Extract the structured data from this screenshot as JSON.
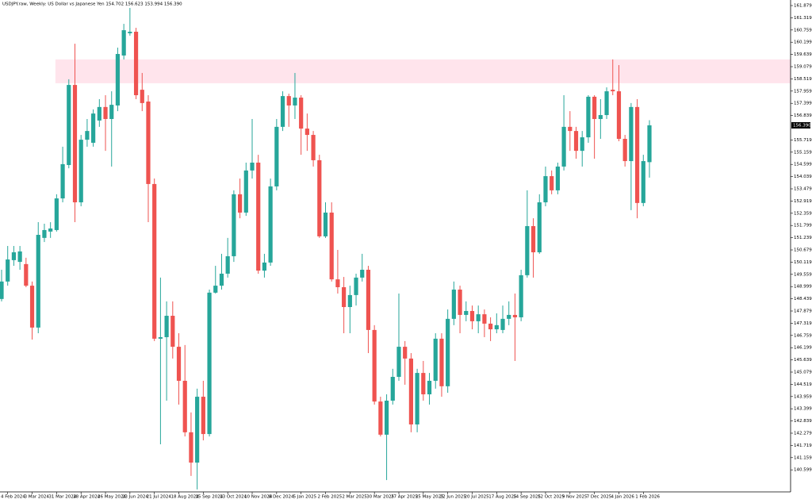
{
  "chart_data": {
    "type": "candlestick",
    "title": "USDJPY.raw, Weekly: US Dollar vs Japanese Yen 154.702 156.623 153.994 156.390",
    "categories": [
      null,
      "4 Feb 2024",
      null,
      null,
      null,
      "3 Mar 2024",
      null,
      null,
      null,
      "31 Mar 2024",
      null,
      null,
      null,
      "28 Apr 2024",
      null,
      null,
      null,
      "26 May 2024",
      null,
      null,
      null,
      "23 Jun 2024",
      null,
      null,
      null,
      "21 Jul 2024",
      null,
      null,
      null,
      "18 Aug 2024",
      null,
      null,
      null,
      "15 Sep 2024",
      null,
      null,
      null,
      "13 Oct 2024",
      null,
      null,
      null,
      "10 Nov 2024",
      null,
      null,
      null,
      "8 Dec 2024",
      null,
      null,
      null,
      "5 Jan 2025",
      null,
      null,
      null,
      "2 Feb 2025",
      null,
      null,
      null,
      "2 Mar 2025",
      null,
      null,
      null,
      "30 Mar 2025",
      null,
      null,
      null,
      "27 Apr 2025",
      null,
      null,
      null,
      "25 May 2025",
      null,
      null,
      null,
      "22 Jun 2025",
      null,
      null,
      null,
      "20 Jul 2025",
      null,
      null,
      null,
      "17 Aug 2025",
      null,
      null,
      null,
      "14 Sep 2025",
      null,
      null,
      null,
      "12 Oct 2025",
      null,
      null,
      null,
      "9 Nov 2025",
      null,
      null,
      null,
      "7 Dec 2025",
      null,
      null,
      null,
      "4 Jan 2026",
      null,
      null,
      null,
      "1 Feb 2026",
      null
    ],
    "open": [
      148.43,
      149.23,
      150.21,
      150.13,
      150.03,
      149.04,
      147.12,
      151.23,
      151.52,
      151.59,
      153.04,
      154.57,
      158.24,
      152.86,
      155.73,
      155.59,
      156.61,
      157.23,
      156.68,
      157.3,
      159.59,
      160.61,
      160.68,
      158.02,
      157.48,
      153.7,
      146.61,
      146.68,
      147.66,
      146.24,
      144.68,
      142.32,
      140.93,
      143.95,
      142.24,
      148.72,
      149.04,
      149.59,
      150.39,
      153.23,
      152.39,
      154.32,
      154.68,
      149.73,
      150.1,
      153.59,
      156.32,
      157.73,
      157.3,
      157.66,
      156.24,
      155.95,
      154.79,
      151.3,
      152.39,
      149.33,
      148.97,
      148.06,
      148.61,
      149.41,
      149.77,
      147.01,
      143.73,
      142.21,
      143.77,
      144.86,
      146.24,
      145.7,
      142.68,
      145.04,
      144.06,
      144.68,
      146.61,
      144.43,
      147.52,
      148.86,
      147.7,
      147.88,
      147.41,
      147.73,
      147.3,
      147.04,
      147.01,
      147.52,
      147.7,
      147.59,
      149.52,
      151.77,
      150.57,
      152.86,
      154.06,
      153.41,
      154.5,
      156.32,
      156.13,
      155.22,
      155.84,
      157.7,
      156.68,
      156.86,
      158.02,
      157.95,
      155.77,
      154.75,
      157.23,
      152.83,
      154.702
    ],
    "high": [
      149.77,
      150.86,
      150.86,
      150.86,
      150.32,
      149.23,
      151.95,
      151.88,
      151.95,
      153.23,
      155.41,
      158.5,
      160.13,
      155.95,
      156.68,
      157.12,
      157.59,
      157.77,
      157.95,
      159.95,
      161.04,
      161.77,
      160.86,
      158.79,
      157.77,
      153.95,
      149.41,
      148.32,
      148.32,
      146.86,
      146.32,
      143.23,
      144.32,
      144.68,
      148.86,
      149.95,
      150.5,
      151.23,
      153.41,
      153.95,
      154.68,
      156.68,
      155.04,
      150.5,
      153.95,
      156.68,
      157.95,
      157.84,
      158.79,
      157.77,
      156.93,
      156.13,
      155.04,
      152.86,
      152.86,
      150.68,
      149.44,
      149.04,
      149.59,
      150.5,
      149.95,
      147.23,
      143.95,
      144.06,
      145.23,
      148.68,
      146.5,
      145.95,
      145.23,
      145.59,
      145.04,
      146.86,
      146.86,
      147.95,
      149.23,
      149.04,
      148.32,
      148.13,
      148.13,
      147.95,
      147.59,
      147.77,
      148.13,
      148.32,
      148.68,
      149.77,
      153.41,
      152.13,
      153.23,
      154.5,
      154.32,
      154.68,
      157.77,
      157.04,
      156.32,
      156.13,
      157.77,
      157.77,
      157.59,
      158.13,
      159.41,
      159.15,
      155.95,
      157.41,
      157.59,
      155.04,
      156.623
    ],
    "low": [
      148.32,
      149.04,
      149.95,
      149.77,
      148.97,
      146.57,
      146.86,
      151.04,
      151.23,
      151.52,
      152.86,
      154.42,
      151.95,
      152.68,
      155.41,
      155.41,
      156.32,
      155.22,
      154.5,
      157.04,
      159.41,
      160.5,
      157.59,
      157.04,
      151.95,
      146.5,
      141.77,
      143.77,
      145.7,
      143.59,
      142.13,
      140.32,
      139.7,
      141.95,
      142.13,
      148.68,
      148.86,
      149.41,
      150.13,
      152.13,
      152.24,
      153.95,
      149.59,
      149.41,
      149.95,
      153.41,
      156.13,
      156.32,
      156.68,
      155.04,
      155.22,
      154.5,
      151.23,
      151.23,
      149.23,
      148.68,
      146.86,
      146.86,
      148.13,
      149.23,
      145.95,
      143.59,
      142.13,
      140.13,
      143.59,
      144.68,
      144.5,
      142.32,
      142.32,
      143.77,
      143.59,
      144.32,
      143.95,
      144.13,
      147.23,
      146.86,
      147.41,
      147.04,
      146.86,
      146.68,
      146.5,
      146.86,
      146.86,
      147.23,
      145.59,
      147.41,
      149.41,
      149.41,
      150.5,
      152.68,
      153.23,
      153.23,
      154.32,
      155.22,
      154.86,
      154.5,
      155.59,
      154.86,
      155.77,
      156.68,
      157.77,
      155.66,
      154.5,
      152.5,
      152.13,
      152.68,
      153.994
    ],
    "close": [
      149.23,
      150.24,
      150.57,
      150.61,
      149.04,
      147.12,
      151.37,
      151.59,
      151.66,
      153.04,
      154.61,
      158.24,
      152.86,
      155.73,
      156.13,
      156.93,
      157.23,
      156.68,
      157.33,
      159.66,
      160.75,
      160.68,
      157.77,
      157.41,
      153.7,
      146.61,
      146.68,
      147.66,
      146.24,
      144.68,
      142.32,
      140.93,
      143.95,
      142.24,
      148.72,
      149.04,
      149.59,
      150.39,
      153.23,
      152.39,
      154.32,
      154.68,
      149.73,
      150.1,
      153.59,
      156.32,
      157.73,
      157.3,
      157.66,
      156.24,
      155.95,
      154.79,
      151.3,
      152.39,
      149.33,
      148.97,
      148.06,
      148.61,
      149.41,
      149.77,
      147.01,
      143.73,
      142.21,
      143.77,
      144.86,
      146.24,
      145.7,
      142.68,
      145.04,
      144.06,
      144.68,
      146.61,
      144.43,
      147.52,
      148.86,
      147.7,
      147.88,
      147.41,
      147.73,
      147.3,
      147.04,
      147.23,
      147.52,
      147.7,
      147.59,
      149.52,
      151.77,
      150.57,
      152.86,
      154.06,
      153.41,
      154.5,
      156.32,
      156.13,
      155.22,
      155.84,
      157.7,
      156.68,
      156.86,
      157.95,
      157.95,
      155.77,
      154.75,
      157.23,
      152.83,
      154.75,
      156.39
    ],
    "up_color": "#26a69a",
    "down_color": "#ef5350",
    "ylim": [
      139.588,
      162.134
    ],
    "yticks": [
      161.879,
      161.319,
      160.759,
      160.199,
      159.639,
      159.079,
      158.519,
      157.959,
      157.399,
      156.839,
      155.719,
      155.159,
      154.599,
      154.039,
      153.479,
      152.919,
      152.359,
      151.799,
      151.239,
      150.679,
      150.119,
      149.559,
      148.999,
      148.439,
      147.879,
      147.319,
      146.759,
      146.199,
      145.639,
      145.079,
      144.519,
      143.959,
      143.399,
      142.839,
      142.279,
      141.719,
      141.159,
      140.599
    ],
    "last_price": {
      "value": 156.39,
      "label": "156.390"
    },
    "zone": {
      "ylim": [
        158.32,
        159.41
      ],
      "color": "#ffe4ec"
    }
  }
}
